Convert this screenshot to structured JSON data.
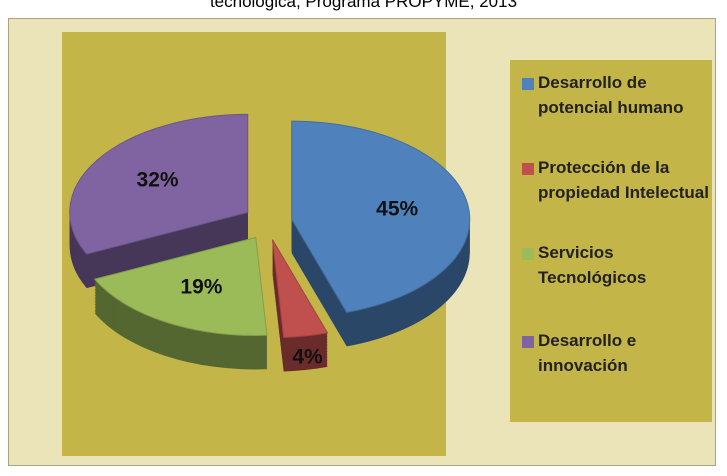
{
  "chart_data": {
    "type": "pie",
    "title": "tecnológica, Programa PROPYME, 2013",
    "categories": [
      "Desarrollo de potencial humano",
      "Protección de la propiedad Intelectual",
      "Servicios Tecnológicos",
      "Desarrollo e innovación"
    ],
    "values": [
      45,
      4,
      19,
      32
    ],
    "value_labels": [
      "45%",
      "4%",
      "19%",
      "32%"
    ],
    "colors": [
      "#4f81bd",
      "#c0504d",
      "#9bbb59",
      "#8064a2"
    ],
    "legend": "right"
  }
}
